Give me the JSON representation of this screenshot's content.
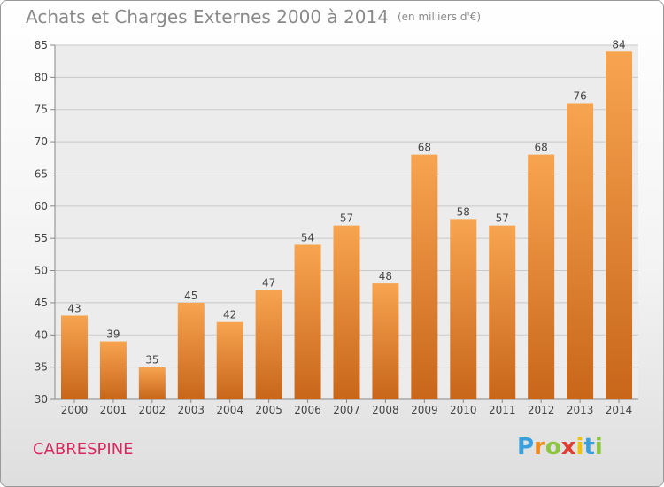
{
  "header": {
    "title": "Achats et Charges Externes 2000 à 2014",
    "unit": "(en milliers d'€)"
  },
  "footer": {
    "commune": "CABRESPINE",
    "logo_text": "Proxiti"
  },
  "colors": {
    "bar_light": "#f7a450",
    "bar_dark": "#c8661a",
    "title": "#8a8a8a",
    "commune": "#d9285f"
  },
  "chart_data": {
    "type": "bar",
    "title": "Achats et Charges Externes 2000 à 2014",
    "subtitle": "(en milliers d'€)",
    "categories": [
      "2000",
      "2001",
      "2002",
      "2003",
      "2004",
      "2005",
      "2006",
      "2007",
      "2008",
      "2009",
      "2010",
      "2011",
      "2012",
      "2013",
      "2014"
    ],
    "values": [
      43,
      39,
      35,
      45,
      42,
      47,
      54,
      57,
      48,
      68,
      58,
      57,
      68,
      76,
      84
    ],
    "ylim": [
      30,
      85
    ],
    "yticks": [
      30,
      35,
      40,
      45,
      50,
      55,
      60,
      65,
      70,
      75,
      80,
      85
    ],
    "xlabel": "",
    "ylabel": "",
    "grid": true,
    "data_labels": true
  }
}
